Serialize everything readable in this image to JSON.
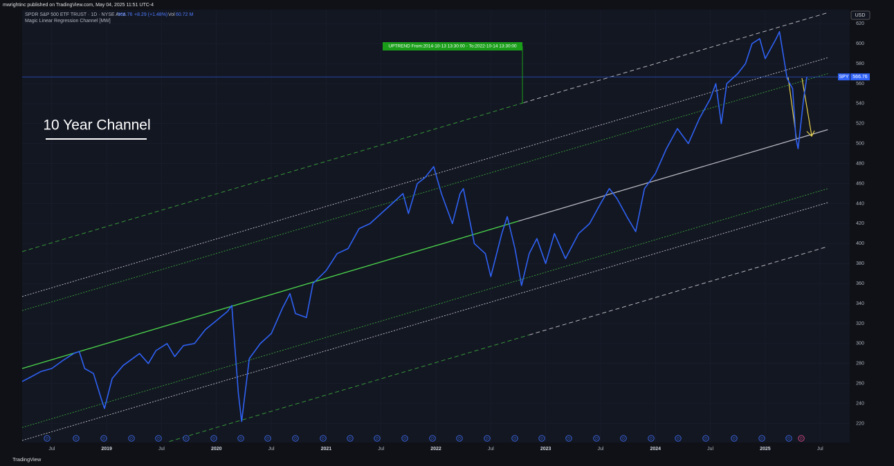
{
  "header": {
    "published": "mwrightinc published on TradingView.com, May 04, 2025 11:51 UTC-4",
    "symbol": "SPDR S&P 500 ETF TRUST · 1D · NYSE Arca",
    "change": "+8.29 (+1.48%)",
    "volume_label": "Vol",
    "volume": "60.72 M",
    "indicator": "Magic Linear Regression Channel [MW]",
    "footer": "TradingView"
  },
  "chart_data": {
    "type": "line",
    "annotation": "UPTREND From:2014-10-13 13:30:00 - To:2022-10-14 13:30:00",
    "headline": "10 Year Channel",
    "currency": "USD",
    "dividend_label": "D",
    "xlim": [
      2018.23,
      2025.77
    ],
    "ylim": [
      201,
      634
    ],
    "xticks": [
      {
        "value": 2018.5,
        "label": "Jul"
      },
      2019,
      {
        "value": 2019.5,
        "label": "Jul"
      },
      2020,
      {
        "value": 2020.5,
        "label": "Jul"
      },
      2021,
      {
        "value": 2021.5,
        "label": "Jul"
      },
      2022,
      {
        "value": 2022.5,
        "label": "Jul"
      },
      2023,
      {
        "value": 2023.5,
        "label": "Jul"
      },
      2024,
      {
        "value": 2024.5,
        "label": "Jul"
      },
      2025,
      {
        "value": 2025.5,
        "label": "Jul"
      }
    ],
    "yticks": [
      220,
      240,
      260,
      280,
      300,
      320,
      340,
      360,
      380,
      400,
      420,
      440,
      460,
      480,
      500,
      520,
      540,
      560,
      580,
      600,
      620
    ],
    "grid": true,
    "x": [
      2018.23,
      2018.3,
      2018.4,
      2018.5,
      2018.6,
      2018.7,
      2018.75,
      2018.8,
      2018.88,
      2018.95,
      2018.98,
      2019.05,
      2019.15,
      2019.3,
      2019.38,
      2019.45,
      2019.55,
      2019.62,
      2019.7,
      2019.8,
      2019.9,
      2020.0,
      2020.1,
      2020.14,
      2020.2,
      2020.23,
      2020.3,
      2020.4,
      2020.5,
      2020.6,
      2020.67,
      2020.72,
      2020.82,
      2020.88,
      2021.0,
      2021.1,
      2021.2,
      2021.3,
      2021.4,
      2021.5,
      2021.6,
      2021.7,
      2021.75,
      2021.83,
      2021.9,
      2021.98,
      2022.05,
      2022.15,
      2022.22,
      2022.25,
      2022.35,
      2022.45,
      2022.5,
      2022.6,
      2022.65,
      2022.72,
      2022.78,
      2022.85,
      2022.92,
      2023.0,
      2023.08,
      2023.18,
      2023.3,
      2023.4,
      2023.5,
      2023.58,
      2023.65,
      2023.75,
      2023.82,
      2023.9,
      2024.0,
      2024.1,
      2024.2,
      2024.3,
      2024.4,
      2024.5,
      2024.55,
      2024.6,
      2024.65,
      2024.75,
      2024.82,
      2024.88,
      2024.95,
      2025.0,
      2025.1,
      2025.13,
      2025.2,
      2025.25,
      2025.28,
      2025.3,
      2025.35,
      2025.38
    ],
    "series": [
      {
        "name": "SPY",
        "color": "#2f62f5",
        "values": [
          262,
          266,
          272,
          275,
          283,
          290,
          292,
          275,
          270,
          245,
          235,
          265,
          278,
          290,
          280,
          293,
          300,
          287,
          298,
          300,
          314,
          323,
          332,
          338,
          250,
          222,
          285,
          300,
          310,
          335,
          350,
          330,
          326,
          360,
          373,
          390,
          395,
          415,
          420,
          430,
          440,
          450,
          430,
          460,
          466,
          477,
          450,
          420,
          450,
          455,
          400,
          390,
          367,
          410,
          427,
          395,
          358,
          390,
          405,
          380,
          410,
          385,
          410,
          420,
          440,
          455,
          445,
          425,
          412,
          455,
          470,
          495,
          515,
          500,
          525,
          545,
          560,
          520,
          560,
          570,
          580,
          600,
          605,
          585,
          605,
          612,
          565,
          555,
          505,
          495,
          545,
          566.76
        ]
      }
    ],
    "channel_lines": [
      {
        "x": [
          2018.23,
          2022.75
        ],
        "values": [
          275,
          422.4
        ],
        "color": "#4cd94c",
        "dash": "solid"
      },
      {
        "x": [
          2022.75,
          2025.57
        ],
        "values": [
          422.4,
          514
        ],
        "color": "#b8b8c0",
        "dash": "solid"
      },
      {
        "x": [
          2018.23,
          2022.8
        ],
        "values": [
          392,
          541
        ],
        "color": "#3aa53a",
        "dash": "dashed"
      },
      {
        "x": [
          2022.8,
          2025.57
        ],
        "values": [
          541,
          631
        ],
        "color": "#c8c8cc",
        "dash": "dashed"
      },
      {
        "x": [
          2018.23,
          2025.57
        ],
        "values": [
          347,
          586
        ],
        "color": "#c8c8cc",
        "dash": "dotted"
      },
      {
        "x": [
          2018.23,
          2025.57
        ],
        "values": [
          333,
          570
        ],
        "color": "#3aa53a",
        "dash": "dotted"
      },
      {
        "x": [
          2018.23,
          2025.57
        ],
        "values": [
          216,
          455
        ],
        "color": "#3aa53a",
        "dash": "dotted"
      },
      {
        "x": [
          2018.23,
          2025.57
        ],
        "values": [
          203,
          441
        ],
        "color": "#c8c8cc",
        "dash": "dotted"
      },
      {
        "x": [
          2019.57,
          2022.85
        ],
        "values": [
          202,
          308.6
        ],
        "color": "#3aa53a",
        "dash": "dashed"
      },
      {
        "x": [
          2022.85,
          2025.57
        ],
        "values": [
          308.6,
          397
        ],
        "color": "#c8c8cc",
        "dash": "dashed"
      }
    ]
  }
}
